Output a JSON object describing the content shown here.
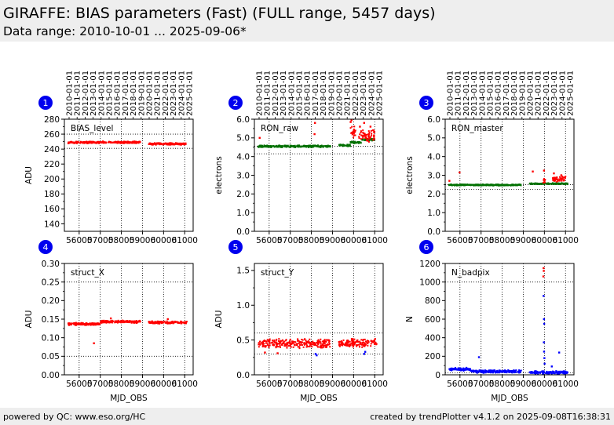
{
  "header": {
    "title": "GIRAFFE: BIAS parameters (Fast) (FULL range, 5457 days)",
    "subtitle": "Data range: 2010-10-01 ... 2025-09-06*"
  },
  "footer": {
    "left": "powered by QC: www.eso.org/HC",
    "right": "created by trendPlotter v4.1.2 on 2025-09-08T16:38:31"
  },
  "colors": {
    "primary": "#ff0000",
    "secondary": "#007000",
    "tertiary": "#0000ff",
    "badge": "#0000ee"
  },
  "chart_data": [
    {
      "index": "1",
      "type": "scatter",
      "label": "BIAS_level",
      "ylabel": "ADU",
      "xlabel": "",
      "xlim": [
        55300,
        61400
      ],
      "ylim": [
        130,
        280
      ],
      "xticks": [
        "56000",
        "57000",
        "58000",
        "59000",
        "60000",
        "61000"
      ],
      "yticks": [
        "140",
        "160",
        "180",
        "200",
        "220",
        "240",
        "260",
        "280"
      ],
      "date_ticks": [
        "2010-01-01",
        "2011-01-01",
        "2012-01-01",
        "2013-01-01",
        "2014-01-01",
        "2015-01-01",
        "2016-01-01",
        "2017-01-01",
        "2018-01-01",
        "2019-01-01",
        "2020-01-01",
        "2021-01-01",
        "2022-01-01",
        "2023-01-01",
        "2024-01-01",
        "2025-01-01"
      ],
      "hlines": [
        260,
        241
      ],
      "series": [
        {
          "color": "#ff0000",
          "segments": [
            [
              55480,
              58900,
              249
            ],
            [
              59300,
              61100,
              247
            ]
          ],
          "spread": 1.5
        }
      ],
      "outliers": []
    },
    {
      "index": "2",
      "type": "scatter",
      "label": "RON_raw",
      "ylabel": "electrons",
      "xlabel": "",
      "xlim": [
        55300,
        61400
      ],
      "ylim": [
        0,
        6
      ],
      "xticks": [
        "56000",
        "57000",
        "58000",
        "59000",
        "60000",
        "61000"
      ],
      "yticks": [
        "0.0",
        "1.0",
        "2.0",
        "3.0",
        "4.0",
        "5.0",
        "6.0"
      ],
      "date_ticks": [
        "2010-01-01",
        "2011-01-01",
        "2012-01-01",
        "2013-01-01",
        "2014-01-01",
        "2015-01-01",
        "2016-01-01",
        "2017-01-01",
        "2018-01-01",
        "2019-01-01",
        "2020-01-01",
        "2021-01-01",
        "2022-01-01",
        "2023-01-01",
        "2024-01-01",
        "2025-01-01"
      ],
      "hlines": [
        4.55,
        4.15
      ],
      "series": [
        {
          "color": "#007000",
          "segments": [
            [
              55480,
              58900,
              4.55
            ],
            [
              59300,
              59850,
              4.6
            ],
            [
              59850,
              60350,
              4.75
            ],
            [
              60350,
              61000,
              4.9
            ]
          ],
          "spread": 0.06
        },
        {
          "color": "#ff0000",
          "segments": [
            [
              59850,
              60100,
              5.3
            ],
            [
              60250,
              61000,
              5.1
            ]
          ],
          "spread": 0.35
        }
      ],
      "outliers": [
        {
          "color": "#ff0000",
          "x": 55550,
          "y": 5.0
        },
        {
          "color": "#ff0000",
          "x": 58150,
          "y": 5.2
        },
        {
          "color": "#ff0000",
          "x": 58170,
          "y": 5.8
        },
        {
          "color": "#ff0000",
          "x": 59860,
          "y": 5.85
        },
        {
          "color": "#ff0000",
          "x": 59900,
          "y": 5.95
        },
        {
          "color": "#ff0000",
          "x": 60300,
          "y": 5.6
        },
        {
          "color": "#ff0000",
          "x": 60500,
          "y": 5.8
        },
        {
          "color": "#ff0000",
          "x": 60800,
          "y": 5.6
        },
        {
          "color": "#ff0000",
          "x": 60950,
          "y": 5.4
        }
      ]
    },
    {
      "index": "3",
      "type": "scatter",
      "label": "RON_master",
      "ylabel": "electrons",
      "xlabel": "",
      "xlim": [
        55300,
        61400
      ],
      "ylim": [
        0,
        6
      ],
      "xticks": [
        "56000",
        "57000",
        "58000",
        "59000",
        "60000",
        "61000"
      ],
      "yticks": [
        "0.0",
        "1.0",
        "2.0",
        "3.0",
        "4.0",
        "5.0",
        "6.0"
      ],
      "date_ticks": [
        "2010-01-01",
        "2011-01-01",
        "2012-01-01",
        "2013-01-01",
        "2014-01-01",
        "2015-01-01",
        "2016-01-01",
        "2017-01-01",
        "2018-01-01",
        "2019-01-01",
        "2020-01-01",
        "2021-01-01",
        "2022-01-01",
        "2023-01-01",
        "2024-01-01",
        "2025-01-01"
      ],
      "hlines": [
        2.5,
        2.25
      ],
      "series": [
        {
          "color": "#007000",
          "segments": [
            [
              55480,
              58900,
              2.48
            ],
            [
              59300,
              61100,
              2.55
            ]
          ],
          "spread": 0.04
        },
        {
          "color": "#ff0000",
          "segments": [
            [
              59950,
              60050,
              2.7
            ],
            [
              60400,
              61000,
              2.8
            ]
          ],
          "spread": 0.18
        }
      ],
      "outliers": [
        {
          "color": "#ff0000",
          "x": 55500,
          "y": 2.7
        },
        {
          "color": "#ff0000",
          "x": 55980,
          "y": 3.15
        },
        {
          "color": "#ff0000",
          "x": 59450,
          "y": 3.2
        },
        {
          "color": "#ff0000",
          "x": 59980,
          "y": 3.25
        },
        {
          "color": "#ff0000",
          "x": 60450,
          "y": 3.1
        },
        {
          "color": "#ff0000",
          "x": 60800,
          "y": 3.0
        }
      ]
    },
    {
      "index": "4",
      "type": "scatter",
      "label": "struct_X",
      "ylabel": "ADU",
      "xlabel": "MJD_OBS",
      "xlim": [
        55300,
        61400
      ],
      "ylim": [
        0,
        0.3
      ],
      "xticks": [
        "56000",
        "57000",
        "58000",
        "59000",
        "60000",
        "61000"
      ],
      "yticks": [
        "0.00",
        "0.05",
        "0.10",
        "0.15",
        "0.20",
        "0.25",
        "0.30"
      ],
      "date_ticks": [],
      "hlines": [
        0.25,
        0.05
      ],
      "series": [
        {
          "color": "#ff0000",
          "segments": [
            [
              55480,
              57000,
              0.137
            ],
            [
              57000,
              58900,
              0.143
            ],
            [
              59300,
              61100,
              0.141
            ]
          ],
          "spread": 0.004
        }
      ],
      "outliers": [
        {
          "color": "#ff0000",
          "x": 56700,
          "y": 0.085
        },
        {
          "color": "#ff0000",
          "x": 57500,
          "y": 0.152
        },
        {
          "color": "#ff0000",
          "x": 60200,
          "y": 0.15
        }
      ]
    },
    {
      "index": "5",
      "type": "scatter",
      "label": "struct_Y",
      "ylabel": "ADU",
      "xlabel": "MJD_OBS",
      "xlim": [
        55300,
        61400
      ],
      "ylim": [
        0,
        1.6
      ],
      "xticks": [
        "56000",
        "57000",
        "58000",
        "59000",
        "60000",
        "61000"
      ],
      "yticks": [
        "0.0",
        "0.5",
        "1.0",
        "1.5"
      ],
      "date_ticks": [],
      "hlines": [
        0.6,
        0.3
      ],
      "series": [
        {
          "color": "#ff0000",
          "segments": [
            [
              55480,
              58900,
              0.45
            ],
            [
              59300,
              61100,
              0.46
            ]
          ],
          "spread": 0.07
        }
      ],
      "outliers": [
        {
          "color": "#0000ff",
          "x": 58200,
          "y": 0.3
        },
        {
          "color": "#0000ff",
          "x": 58250,
          "y": 0.28
        },
        {
          "color": "#0000ff",
          "x": 60500,
          "y": 0.3
        },
        {
          "color": "#0000ff",
          "x": 60550,
          "y": 0.33
        },
        {
          "color": "#ff0000",
          "x": 55800,
          "y": 0.32
        },
        {
          "color": "#ff0000",
          "x": 56400,
          "y": 0.31
        }
      ]
    },
    {
      "index": "6",
      "type": "scatter",
      "label": "N_badpix",
      "ylabel": "N",
      "xlabel": "MJD_OBS",
      "xlim": [
        55300,
        61400
      ],
      "ylim": [
        0,
        1200
      ],
      "xticks": [
        "56000",
        "57000",
        "58000",
        "59000",
        "60000",
        "61000"
      ],
      "yticks": [
        "0",
        "200",
        "400",
        "600",
        "800",
        "1000",
        "1200"
      ],
      "date_ticks": [],
      "hlines": [
        1000,
        20
      ],
      "series": [
        {
          "color": "#0000ff",
          "segments": [
            [
              55480,
              56500,
              60
            ],
            [
              56500,
              58900,
              35
            ],
            [
              59300,
              61100,
              25
            ]
          ],
          "spread": 18
        }
      ],
      "outliers": [
        {
          "color": "#ff0000",
          "x": 59960,
          "y": 1150
        },
        {
          "color": "#ff0000",
          "x": 59970,
          "y": 1120
        },
        {
          "color": "#ff0000",
          "x": 59950,
          "y": 1060
        },
        {
          "color": "#0000ff",
          "x": 59960,
          "y": 850
        },
        {
          "color": "#0000ff",
          "x": 59980,
          "y": 600
        },
        {
          "color": "#0000ff",
          "x": 59990,
          "y": 550
        },
        {
          "color": "#0000ff",
          "x": 59975,
          "y": 350
        },
        {
          "color": "#0000ff",
          "x": 59985,
          "y": 250
        },
        {
          "color": "#0000ff",
          "x": 60000,
          "y": 180
        },
        {
          "color": "#0000ff",
          "x": 60010,
          "y": 120
        },
        {
          "color": "#0000ff",
          "x": 60700,
          "y": 240
        },
        {
          "color": "#0000ff",
          "x": 56900,
          "y": 190
        },
        {
          "color": "#0000ff",
          "x": 60350,
          "y": 90
        }
      ]
    }
  ]
}
